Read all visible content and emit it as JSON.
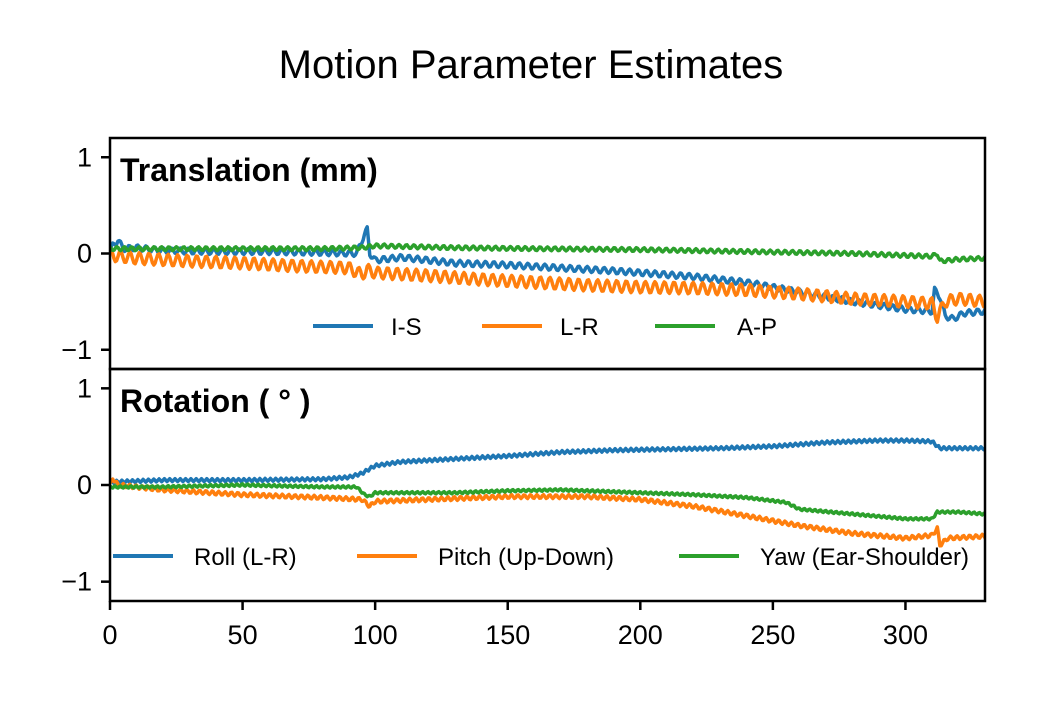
{
  "title": "Motion Parameter Estimates",
  "colors": {
    "blue": "#1f77b4",
    "orange": "#ff7f0e",
    "green": "#2ca02c"
  },
  "chart_data": [
    {
      "type": "line",
      "panel_title": "Translation (mm)",
      "xlim": [
        0,
        330
      ],
      "ylim": [
        -1.2,
        1.2
      ],
      "yticks": [
        "1",
        "0",
        "−1"
      ],
      "ytick_values": [
        1,
        0,
        -1
      ],
      "legend_position": "lower-center",
      "series": [
        {
          "name": "I-S",
          "color": "#1f77b4",
          "wiggle": [
            0.03,
            0.8
          ],
          "keypoints": [
            [
              0,
              0.02
            ],
            [
              1,
              0.08
            ],
            [
              3,
              0.14
            ],
            [
              5,
              0.05
            ],
            [
              10,
              0.06
            ],
            [
              20,
              0.03
            ],
            [
              40,
              0.02
            ],
            [
              60,
              0.02
            ],
            [
              80,
              0.01
            ],
            [
              93,
              0.0
            ],
            [
              96,
              0.2
            ],
            [
              97,
              0.25
            ],
            [
              98,
              0.0
            ],
            [
              100,
              -0.07
            ],
            [
              110,
              -0.04
            ],
            [
              130,
              -0.1
            ],
            [
              150,
              -0.12
            ],
            [
              170,
              -0.15
            ],
            [
              190,
              -0.18
            ],
            [
              200,
              -0.2
            ],
            [
              220,
              -0.24
            ],
            [
              240,
              -0.3
            ],
            [
              260,
              -0.4
            ],
            [
              280,
              -0.5
            ],
            [
              300,
              -0.58
            ],
            [
              310,
              -0.6
            ],
            [
              311,
              -0.38
            ],
            [
              313,
              -0.45
            ],
            [
              315,
              -0.65
            ],
            [
              318,
              -0.68
            ],
            [
              322,
              -0.62
            ],
            [
              330,
              -0.6
            ]
          ]
        },
        {
          "name": "L-R",
          "color": "#ff7f0e",
          "wiggle": [
            0.06,
            0.9
          ],
          "keypoints": [
            [
              0,
              -0.02
            ],
            [
              10,
              -0.05
            ],
            [
              30,
              -0.08
            ],
            [
              50,
              -0.1
            ],
            [
              70,
              -0.13
            ],
            [
              90,
              -0.15
            ],
            [
              95,
              -0.22
            ],
            [
              97,
              -0.17
            ],
            [
              100,
              -0.2
            ],
            [
              120,
              -0.23
            ],
            [
              140,
              -0.27
            ],
            [
              160,
              -0.3
            ],
            [
              180,
              -0.33
            ],
            [
              200,
              -0.35
            ],
            [
              220,
              -0.36
            ],
            [
              240,
              -0.38
            ],
            [
              260,
              -0.42
            ],
            [
              280,
              -0.47
            ],
            [
              300,
              -0.5
            ],
            [
              310,
              -0.52
            ],
            [
              312,
              -0.66
            ],
            [
              315,
              -0.5
            ],
            [
              320,
              -0.47
            ],
            [
              330,
              -0.5
            ]
          ]
        },
        {
          "name": "A-P",
          "color": "#2ca02c",
          "wiggle": [
            0.02,
            0.7
          ],
          "keypoints": [
            [
              0,
              0.05
            ],
            [
              20,
              0.05
            ],
            [
              50,
              0.05
            ],
            [
              80,
              0.05
            ],
            [
              95,
              0.06
            ],
            [
              100,
              0.08
            ],
            [
              130,
              0.06
            ],
            [
              160,
              0.05
            ],
            [
              200,
              0.04
            ],
            [
              240,
              0.02
            ],
            [
              260,
              0.01
            ],
            [
              280,
              0.0
            ],
            [
              300,
              -0.02
            ],
            [
              310,
              -0.03
            ],
            [
              312,
              0.0
            ],
            [
              313,
              -0.08
            ],
            [
              320,
              -0.06
            ],
            [
              330,
              -0.05
            ]
          ]
        }
      ]
    },
    {
      "type": "line",
      "panel_title": "Rotation ( ° )",
      "xlim": [
        0,
        330
      ],
      "ylim": [
        -1.2,
        1.2
      ],
      "yticks": [
        "1",
        "0",
        "−1"
      ],
      "ytick_values": [
        1,
        0,
        -1
      ],
      "xticks": [
        "0",
        "50",
        "100",
        "150",
        "200",
        "250",
        "300"
      ],
      "xtick_values": [
        0,
        50,
        100,
        150,
        200,
        250,
        300
      ],
      "legend_position": "lower-center",
      "series": [
        {
          "name": "Roll (L-R)",
          "color": "#1f77b4",
          "wiggle": [
            0.015,
            0.5
          ],
          "keypoints": [
            [
              0,
              0.03
            ],
            [
              20,
              0.05
            ],
            [
              50,
              0.05
            ],
            [
              80,
              0.06
            ],
            [
              90,
              0.08
            ],
            [
              95,
              0.12
            ],
            [
              100,
              0.2
            ],
            [
              110,
              0.24
            ],
            [
              130,
              0.27
            ],
            [
              150,
              0.3
            ],
            [
              170,
              0.34
            ],
            [
              190,
              0.36
            ],
            [
              210,
              0.37
            ],
            [
              230,
              0.38
            ],
            [
              250,
              0.4
            ],
            [
              270,
              0.44
            ],
            [
              290,
              0.46
            ],
            [
              300,
              0.46
            ],
            [
              310,
              0.45
            ],
            [
              313,
              0.38
            ],
            [
              320,
              0.38
            ],
            [
              330,
              0.38
            ]
          ]
        },
        {
          "name": "Pitch (Up-Down)",
          "color": "#ff7f0e",
          "wiggle": [
            0.02,
            0.6
          ],
          "keypoints": [
            [
              0,
              0.0
            ],
            [
              1,
              0.07
            ],
            [
              3,
              0.0
            ],
            [
              20,
              -0.05
            ],
            [
              50,
              -0.1
            ],
            [
              80,
              -0.13
            ],
            [
              95,
              -0.15
            ],
            [
              98,
              -0.22
            ],
            [
              100,
              -0.17
            ],
            [
              120,
              -0.15
            ],
            [
              150,
              -0.12
            ],
            [
              180,
              -0.12
            ],
            [
              200,
              -0.15
            ],
            [
              220,
              -0.22
            ],
            [
              240,
              -0.32
            ],
            [
              260,
              -0.42
            ],
            [
              280,
              -0.5
            ],
            [
              300,
              -0.55
            ],
            [
              310,
              -0.52
            ],
            [
              312,
              -0.45
            ],
            [
              313,
              -0.62
            ],
            [
              316,
              -0.55
            ],
            [
              330,
              -0.53
            ]
          ]
        },
        {
          "name": "Yaw (Ear-Shoulder)",
          "color": "#2ca02c",
          "wiggle": [
            0.012,
            0.5
          ],
          "keypoints": [
            [
              0,
              -0.02
            ],
            [
              20,
              -0.02
            ],
            [
              50,
              0.0
            ],
            [
              80,
              -0.02
            ],
            [
              93,
              -0.02
            ],
            [
              96,
              -0.1
            ],
            [
              98,
              -0.12
            ],
            [
              100,
              -0.08
            ],
            [
              130,
              -0.08
            ],
            [
              150,
              -0.06
            ],
            [
              170,
              -0.05
            ],
            [
              200,
              -0.08
            ],
            [
              220,
              -0.1
            ],
            [
              240,
              -0.13
            ],
            [
              255,
              -0.18
            ],
            [
              260,
              -0.25
            ],
            [
              280,
              -0.3
            ],
            [
              300,
              -0.35
            ],
            [
              310,
              -0.35
            ],
            [
              312,
              -0.28
            ],
            [
              320,
              -0.28
            ],
            [
              330,
              -0.3
            ]
          ]
        }
      ]
    }
  ]
}
